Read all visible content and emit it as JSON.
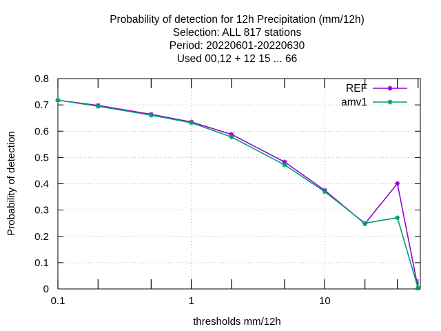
{
  "chart_data": {
    "type": "line",
    "title_lines": [
      "Probability of detection  for 12h Precipitation (mm/12h)",
      "Selection: ALL    817 stations",
      "Period: 20220601-20220630",
      "Used  00,12  + 12 15 ... 66"
    ],
    "xlabel": "thresholds mm/12h",
    "ylabel": "Probability of detection",
    "xscale": "log",
    "xlim": [
      0.1,
      52
    ],
    "ylim": [
      0,
      0.8
    ],
    "x_ticks": [
      {
        "value": 0.1,
        "label": "0.1"
      },
      {
        "value": 1,
        "label": "1"
      },
      {
        "value": 10,
        "label": "10"
      }
    ],
    "y_ticks": [
      {
        "value": 0,
        "label": "0"
      },
      {
        "value": 0.1,
        "label": "0.1"
      },
      {
        "value": 0.2,
        "label": "0.2"
      },
      {
        "value": 0.3,
        "label": "0.3"
      },
      {
        "value": 0.4,
        "label": "0.4"
      },
      {
        "value": 0.5,
        "label": "0.5"
      },
      {
        "value": 0.6,
        "label": "0.6"
      },
      {
        "value": 0.7,
        "label": "0.7"
      },
      {
        "value": 0.8,
        "label": "0.8"
      }
    ],
    "minor_x_ticks": [
      0.2,
      0.5,
      2,
      5,
      20,
      35,
      50
    ],
    "grid": true,
    "legend_position": "top-right",
    "series": [
      {
        "name": "REF",
        "color": "#9400d3",
        "x": [
          0.1,
          0.2,
          0.5,
          1,
          2,
          5,
          10,
          20,
          35,
          50
        ],
        "y": [
          0.718,
          0.698,
          0.664,
          0.635,
          0.588,
          0.483,
          0.375,
          0.248,
          0.401,
          0.003
        ]
      },
      {
        "name": "amv1",
        "color": "#009e73",
        "x": [
          0.1,
          0.2,
          0.5,
          1,
          2,
          5,
          10,
          20,
          35,
          50
        ],
        "y": [
          0.718,
          0.695,
          0.661,
          0.632,
          0.578,
          0.472,
          0.37,
          0.25,
          0.271,
          0.003
        ]
      }
    ]
  }
}
